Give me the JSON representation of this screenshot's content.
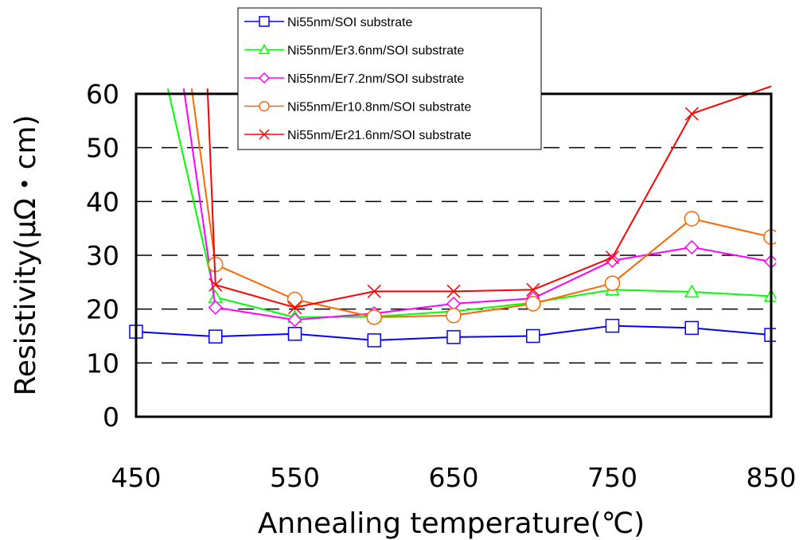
{
  "chart_data": {
    "type": "line",
    "xlabel": "Annealing temperature(℃)",
    "ylabel": "Resistivity(μΩ・cm)",
    "xlim": [
      450,
      850
    ],
    "ylim": [
      0,
      60
    ],
    "x_ticks": [
      "450",
      "550",
      "650",
      "750",
      "850"
    ],
    "y_ticks": [
      "0",
      "10",
      "20",
      "30",
      "40",
      "50",
      "60"
    ],
    "grid": "horizontal dashed",
    "legend_position": "top",
    "series": [
      {
        "name": "Ni55nm/SOI substrate",
        "color": "#0000ff",
        "marker": "square",
        "x": [
          450,
          500,
          550,
          600,
          650,
          700,
          750,
          800,
          850
        ],
        "y": [
          15.8,
          14.9,
          15.4,
          14.2,
          14.8,
          15.0,
          16.9,
          16.5,
          15.2
        ]
      },
      {
        "name": "Ni55nm/Er3.6nm/SOI substrate",
        "color": "#00ff00",
        "marker": "triangle",
        "x": [
          470,
          500,
          550,
          600,
          650,
          700,
          750,
          800,
          850
        ],
        "y": [
          61,
          22.2,
          18.5,
          18.6,
          19.6,
          21.2,
          23.6,
          23.2,
          22.4
        ]
      },
      {
        "name": "Ni55nm/Er7.2nm/SOI substrate",
        "color": "#ff00ff",
        "marker": "diamond",
        "x": [
          480,
          500,
          550,
          600,
          650,
          700,
          750,
          800,
          850
        ],
        "y": [
          61,
          20.3,
          18.0,
          19.2,
          21.0,
          22.0,
          29.0,
          31.5,
          28.8
        ]
      },
      {
        "name": "Ni55nm/Er10.8nm/SOI substrate",
        "color": "#ff6600",
        "marker": "circle",
        "x": [
          485,
          500,
          550,
          600,
          650,
          700,
          750,
          800,
          850
        ],
        "y": [
          61,
          28.3,
          21.8,
          18.5,
          18.8,
          21.0,
          24.8,
          36.8,
          33.4
        ]
      },
      {
        "name": "Ni55nm/Er21.6nm/SOI substrate",
        "color": "#ff0000",
        "marker": "x",
        "x": [
          495,
          500,
          550,
          600,
          650,
          700,
          750,
          800,
          850
        ],
        "y": [
          61,
          24.5,
          20.3,
          23.3,
          23.3,
          23.6,
          29.6,
          56.3,
          61.4
        ]
      }
    ]
  }
}
